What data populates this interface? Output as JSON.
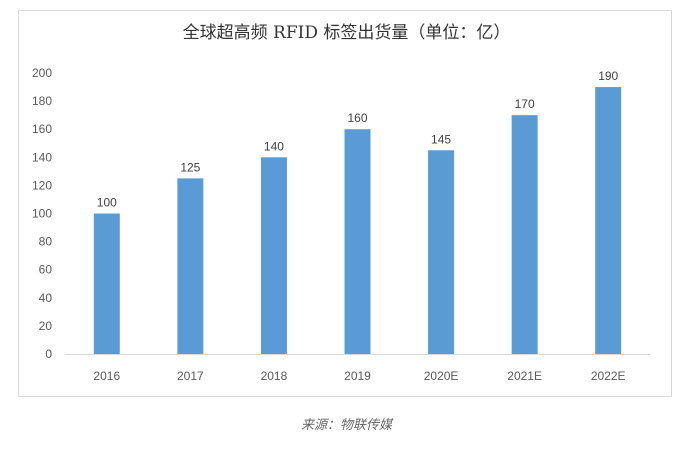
{
  "chart_data": {
    "type": "bar",
    "title": "全球超高频 RFID 标签出货量（单位：亿）",
    "categories": [
      "2016",
      "2017",
      "2018",
      "2019",
      "2020E",
      "2021E",
      "2022E"
    ],
    "values": [
      100,
      125,
      140,
      160,
      145,
      170,
      190
    ],
    "ylim": [
      0,
      200
    ],
    "yticks": [
      0,
      20,
      40,
      60,
      80,
      100,
      120,
      140,
      160,
      180,
      200
    ],
    "grid": false,
    "bar_color": "#5b9bd5",
    "data_labels": true
  },
  "source": "来源：物联传媒"
}
